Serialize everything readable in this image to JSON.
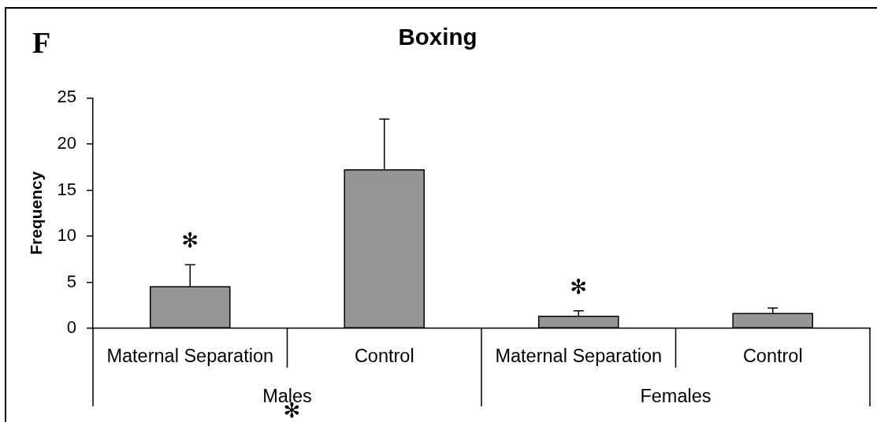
{
  "chart_data": {
    "type": "bar",
    "title": "Boxing",
    "ylabel": "Frequency",
    "categories": [
      "Maternal Separation",
      "Control",
      "Maternal Separation",
      "Control"
    ],
    "values": [
      4.5,
      17.2,
      1.3,
      1.6
    ],
    "color": "#969696",
    "errors": [
      [
        4.5,
        6.9
      ],
      [
        17.2,
        22.7
      ],
      [
        1.3,
        1.9
      ],
      [
        1.6,
        2.2
      ]
    ],
    "ylim": [
      0,
      25
    ],
    "yticks": [
      0,
      5,
      10,
      15,
      20,
      25
    ],
    "annotations": [
      "F",
      "Males",
      "Females",
      "✻",
      "✻",
      "✻"
    ]
  }
}
